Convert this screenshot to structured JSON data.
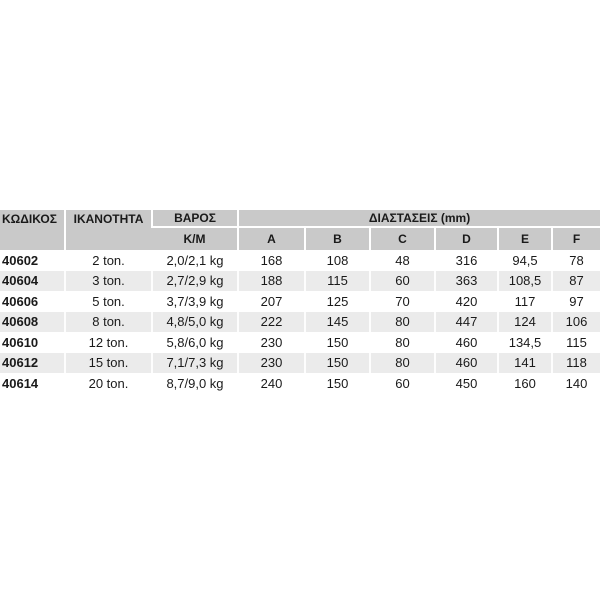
{
  "headers": {
    "code": "ΚΩΔΙΚΟΣ",
    "capacity": "ΙΚΑΝΟΤΗΤΑ",
    "weight": "ΒΑΡΟΣ",
    "weight_unit": "K/M",
    "dimensions": "ΔΙΑΣΤΑΣΕΙΣ (mm)",
    "dims": [
      "A",
      "B",
      "C",
      "D",
      "E",
      "F"
    ]
  },
  "rows": [
    {
      "code": "40602",
      "capacity": "2 ton.",
      "weight": "2,0/2,1 kg",
      "A": "168",
      "B": "108",
      "C": "48",
      "D": "316",
      "E": "94,5",
      "F": "78"
    },
    {
      "code": "40604",
      "capacity": "3 ton.",
      "weight": "2,7/2,9 kg",
      "A": "188",
      "B": "115",
      "C": "60",
      "D": "363",
      "E": "108,5",
      "F": "87"
    },
    {
      "code": "40606",
      "capacity": "5 ton.",
      "weight": "3,7/3,9 kg",
      "A": "207",
      "B": "125",
      "C": "70",
      "D": "420",
      "E": "117",
      "F": "97"
    },
    {
      "code": "40608",
      "capacity": "8 ton.",
      "weight": "4,8/5,0 kg",
      "A": "222",
      "B": "145",
      "C": "80",
      "D": "447",
      "E": "124",
      "F": "106"
    },
    {
      "code": "40610",
      "capacity": "12 ton.",
      "weight": "5,8/6,0 kg",
      "A": "230",
      "B": "150",
      "C": "80",
      "D": "460",
      "E": "134,5",
      "F": "115"
    },
    {
      "code": "40612",
      "capacity": "15 ton.",
      "weight": "7,1/7,3 kg",
      "A": "230",
      "B": "150",
      "C": "80",
      "D": "460",
      "E": "141",
      "F": "118"
    },
    {
      "code": "40614",
      "capacity": "20 ton.",
      "weight": "8,7/9,0 kg",
      "A": "240",
      "B": "150",
      "C": "60",
      "D": "450",
      "E": "160",
      "F": "140"
    }
  ]
}
